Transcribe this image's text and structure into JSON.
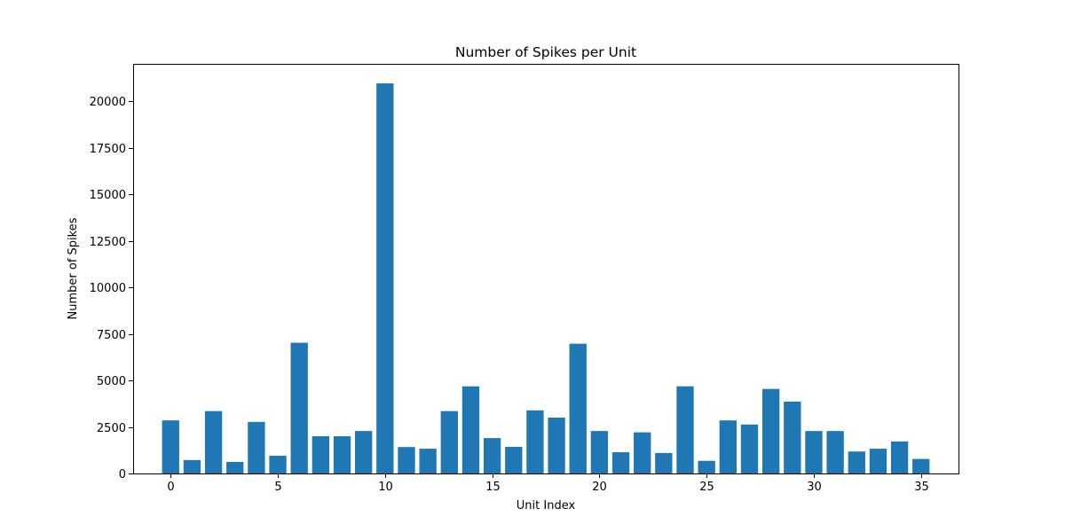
{
  "chart_data": {
    "type": "bar",
    "title": "Number of Spikes per Unit",
    "xlabel": "Unit Index",
    "ylabel": "Number of Spikes",
    "x": [
      0,
      1,
      2,
      3,
      4,
      5,
      6,
      7,
      8,
      9,
      10,
      11,
      12,
      13,
      14,
      15,
      16,
      17,
      18,
      19,
      20,
      21,
      22,
      23,
      24,
      25,
      26,
      27,
      28,
      29,
      30,
      31,
      32,
      33,
      34,
      35
    ],
    "values": [
      2850,
      720,
      3350,
      620,
      2770,
      950,
      7020,
      2000,
      2000,
      2280,
      20950,
      1420,
      1330,
      3350,
      4680,
      1900,
      1430,
      3390,
      3000,
      6970,
      2280,
      1140,
      2210,
      1100,
      4680,
      680,
      2850,
      2630,
      4540,
      3860,
      2280,
      2280,
      1180,
      1330,
      1720,
      780
    ],
    "xlim": [
      -1.75,
      36.75
    ],
    "ylim": [
      0,
      22000
    ],
    "xticks": [
      "0",
      "5",
      "10",
      "15",
      "20",
      "25",
      "30",
      "35"
    ],
    "xtick_values": [
      0,
      5,
      10,
      15,
      20,
      25,
      30,
      35
    ],
    "yticks": [
      "0",
      "2500",
      "5000",
      "7500",
      "10000",
      "12500",
      "15000",
      "17500",
      "20000"
    ],
    "ytick_values": [
      0,
      2500,
      5000,
      7500,
      10000,
      12500,
      15000,
      17500,
      20000
    ],
    "bar_color": "#1f77b4",
    "grid": false,
    "legend": "none"
  }
}
